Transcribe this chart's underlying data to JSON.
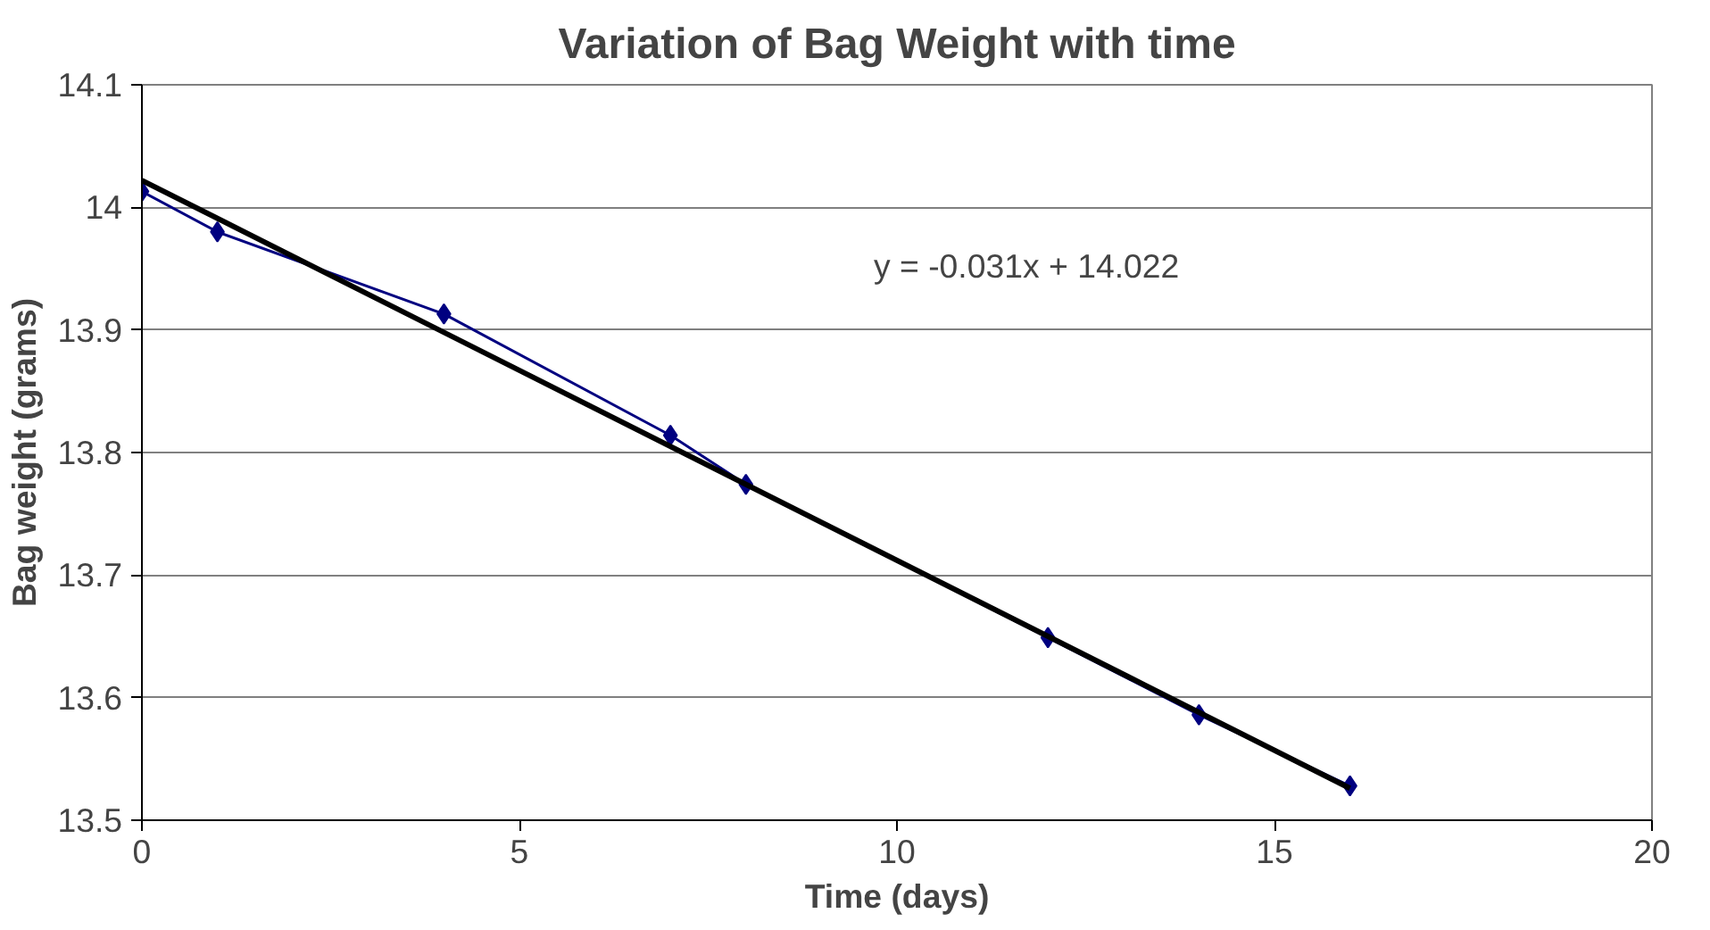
{
  "chart_data": {
    "type": "line",
    "title": "Variation of Bag Weight with time",
    "xlabel": "Time (days)",
    "ylabel": "Bag weight (grams)",
    "x": [
      0,
      1,
      4,
      7,
      8,
      12,
      14,
      16
    ],
    "series": [
      {
        "color": "#000080",
        "values": [
          14.013,
          13.98,
          13.913,
          13.814,
          13.774,
          13.649,
          13.586,
          13.528
        ],
        "marker": "diamond"
      },
      {
        "type": "line",
        "color": "#000000",
        "x": [
          0,
          16
        ],
        "values": [
          14.022,
          13.526
        ],
        "marker": "none"
      }
    ],
    "annotations": [
      "y = -0.031x + 14.022"
    ],
    "xlim": [
      0,
      20
    ],
    "xticks": [
      0,
      5,
      10,
      15,
      20
    ],
    "ylim": [
      13.5,
      14.1
    ],
    "yticks": [
      13.5,
      13.6,
      13.7,
      13.8,
      13.9,
      {
        "value": 14.0,
        "label": "14"
      },
      14.1
    ],
    "grid": "y"
  }
}
